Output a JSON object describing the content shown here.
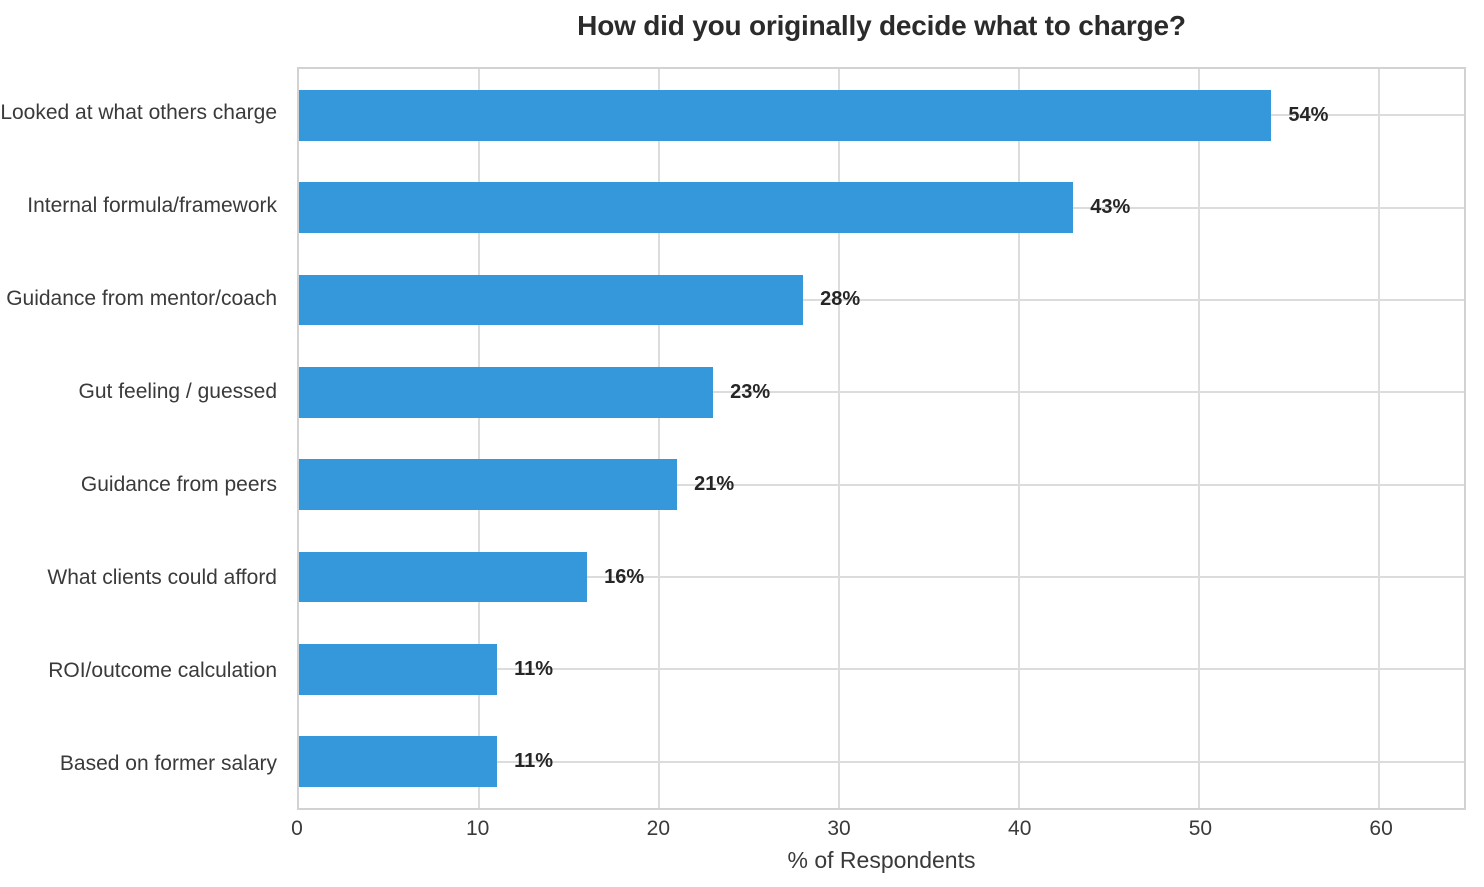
{
  "title": "How did you originally decide what to charge?",
  "chart_data": {
    "type": "bar",
    "orientation": "horizontal",
    "title": "How did you originally decide what to charge?",
    "xlabel": "% of Respondents",
    "ylabel": "",
    "categories": [
      "Looked at what others charge",
      "Internal formula/framework",
      "Guidance from mentor/coach",
      "Gut feeling / guessed",
      "Guidance from peers",
      "What clients could afford",
      "ROI/outcome calculation",
      "Based on former salary"
    ],
    "values": [
      54,
      43,
      28,
      23,
      21,
      16,
      11,
      11
    ],
    "value_labels": [
      "54%",
      "43%",
      "28%",
      "23%",
      "21%",
      "16%",
      "11%",
      "11%"
    ],
    "xticks": [
      0,
      10,
      20,
      30,
      40,
      50,
      60
    ],
    "xtick_labels": [
      "0",
      "10",
      "20",
      "30",
      "40",
      "50",
      "60"
    ],
    "xlim": [
      0,
      64.7
    ],
    "grid": true,
    "legend": false,
    "colors": {
      "bar": "#3498db",
      "grid": "#dcdcdc",
      "spine": "#d2d2d2",
      "title_text": "#2b2b2b",
      "axis_text": "#3a3a3a",
      "value_text": "#262626",
      "background": "#ffffff"
    }
  }
}
